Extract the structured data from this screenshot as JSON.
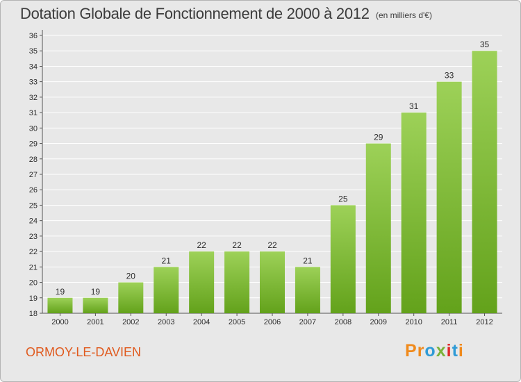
{
  "header": {
    "title": "Dotation Globale de Fonctionnement de 2000 à 2012",
    "unit": "(en milliers d'€)"
  },
  "footer": {
    "commune": "ORMOY-LE-DAVIEN",
    "logo": [
      {
        "char": "P",
        "color": "#f08a1c"
      },
      {
        "char": "r",
        "color": "#f08a1c"
      },
      {
        "char": "o",
        "color": "#2f9bd6"
      },
      {
        "char": "x",
        "color": "#7ab23a"
      },
      {
        "char": "i",
        "color": "#e0292a"
      },
      {
        "char": "t",
        "color": "#2f9bd6"
      },
      {
        "char": "i",
        "color": "#f08a1c"
      }
    ]
  },
  "colors": {
    "bar_top": "#9dd158",
    "bar_bottom": "#63a21b",
    "grid": "#ffffff",
    "plot_bg": "#e8e8e8"
  },
  "chart_data": {
    "type": "bar",
    "title": "Dotation Globale de Fonctionnement de 2000 à 2012",
    "xlabel": "",
    "ylabel": "",
    "categories": [
      "2000",
      "2001",
      "2002",
      "2003",
      "2004",
      "2005",
      "2006",
      "2007",
      "2008",
      "2009",
      "2010",
      "2011",
      "2012"
    ],
    "values": [
      19,
      19,
      20,
      21,
      22,
      22,
      22,
      21,
      25,
      29,
      31,
      33,
      35
    ],
    "ylim": [
      18,
      36
    ],
    "yticks": [
      18,
      19,
      20,
      21,
      22,
      23,
      24,
      25,
      26,
      27,
      28,
      29,
      30,
      31,
      32,
      33,
      34,
      35,
      36
    ],
    "grid": true
  }
}
